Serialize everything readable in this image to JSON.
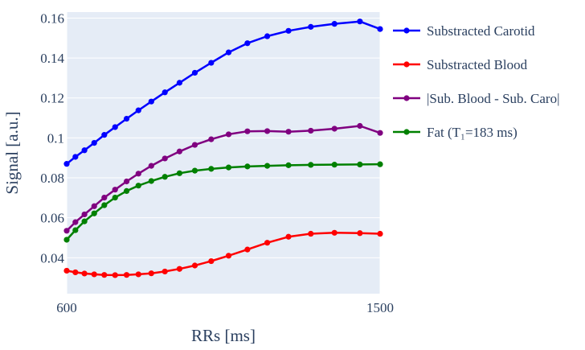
{
  "chart_data": {
    "type": "line",
    "title": "",
    "xlabel": "RRs [ms]",
    "ylabel": "Signal [a.u.]",
    "xlim": [
      600,
      1500
    ],
    "ylim": [
      0.022,
      0.163
    ],
    "xticks": [
      600,
      1500
    ],
    "yticks": [
      0.04,
      0.06,
      0.08,
      0.1,
      0.12,
      0.14,
      0.16
    ],
    "ytick_labels": [
      "0.04",
      "0.06",
      "0.08",
      "0.1",
      "0.12",
      "0.14",
      "0.16"
    ],
    "grid": true,
    "legend_position": "right",
    "x": [
      600,
      625,
      651,
      679,
      708,
      739,
      772,
      806,
      843,
      882,
      924,
      968,
      1015,
      1065,
      1119,
      1176,
      1237,
      1301,
      1369,
      1442,
      1500
    ],
    "series": [
      {
        "name": "Substracted Carotid",
        "color": "#0000ff",
        "values": [
          0.087,
          0.0905,
          0.0938,
          0.0975,
          0.1015,
          0.1054,
          0.1096,
          0.1138,
          0.1182,
          0.1228,
          0.1276,
          0.1326,
          0.1376,
          0.1428,
          0.1474,
          0.1509,
          0.1536,
          0.1556,
          0.1571,
          0.1583,
          0.1545
        ]
      },
      {
        "name": "Substracted Blood",
        "color": "#ff0000",
        "values": [
          0.0335,
          0.0327,
          0.0321,
          0.0317,
          0.0314,
          0.0313,
          0.0314,
          0.0317,
          0.0322,
          0.0331,
          0.0344,
          0.0361,
          0.0383,
          0.041,
          0.0441,
          0.0475,
          0.0505,
          0.052,
          0.0525,
          0.0523,
          0.052
        ]
      },
      {
        "name": "|Sub. Blood - Sub. Caro|",
        "color": "#800080",
        "values": [
          0.0535,
          0.0578,
          0.0617,
          0.0658,
          0.0701,
          0.0741,
          0.0782,
          0.0821,
          0.086,
          0.0897,
          0.0932,
          0.0965,
          0.0993,
          0.1018,
          0.1033,
          0.1034,
          0.1031,
          0.1036,
          0.1046,
          0.106,
          0.1025
        ]
      },
      {
        "name": "Fat (T₁=183 ms)",
        "color": "#008000",
        "values": [
          0.049,
          0.0538,
          0.0582,
          0.0622,
          0.0663,
          0.0701,
          0.0734,
          0.0761,
          0.0784,
          0.0805,
          0.0823,
          0.0836,
          0.0845,
          0.0852,
          0.0857,
          0.086,
          0.0863,
          0.0865,
          0.0866,
          0.0867,
          0.0868
        ]
      }
    ]
  }
}
